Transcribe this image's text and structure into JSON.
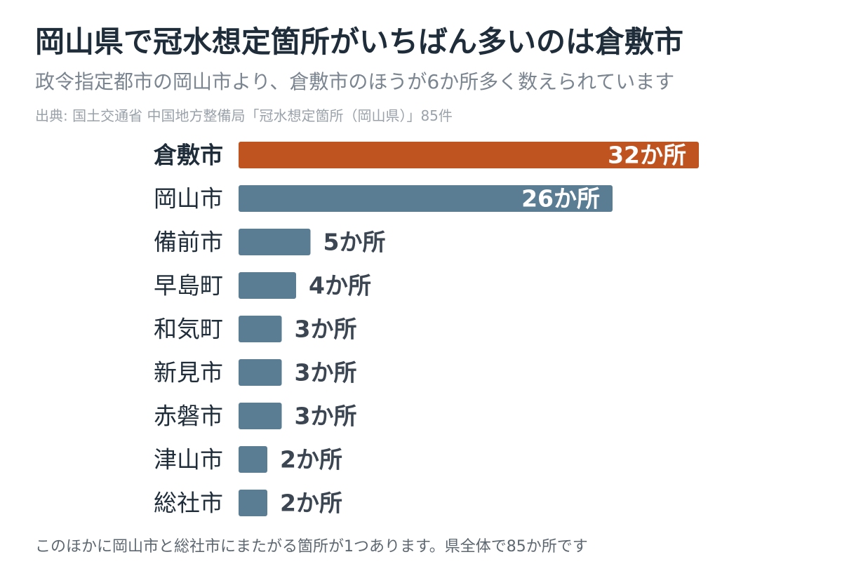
{
  "header": {
    "title": "岡山県で冠水想定箇所がいちばん多いのは倉敷市",
    "subtitle": "政令指定都市の岡山市より、倉敷市のほうが6か所多く数えられています",
    "source": "出典: 国土交通省 中国地方整備局「冠水想定箇所（岡山県）」85件"
  },
  "footer": {
    "note": "このほかに岡山市と総社市にまたがる箇所が1つあります。県全体で85か所です"
  },
  "colors": {
    "highlight": "#bf5420",
    "bar": "#5b7d93",
    "label_dark": "#1f2d3a",
    "value_dark": "#3b4652",
    "value_light": "#ffffff"
  },
  "chart_data": {
    "type": "bar",
    "orientation": "horizontal",
    "categories": [
      "倉敷市",
      "岡山市",
      "備前市",
      "早島町",
      "和気町",
      "新見市",
      "赤磐市",
      "津山市",
      "総社市"
    ],
    "values": [
      32,
      26,
      5,
      4,
      3,
      3,
      3,
      2,
      2
    ],
    "value_labels": [
      "32か所",
      "26か所",
      "5か所",
      "4か所",
      "3か所",
      "3か所",
      "3か所",
      "2か所",
      "2か所"
    ],
    "highlight_category": "倉敷市",
    "grid": false
  }
}
